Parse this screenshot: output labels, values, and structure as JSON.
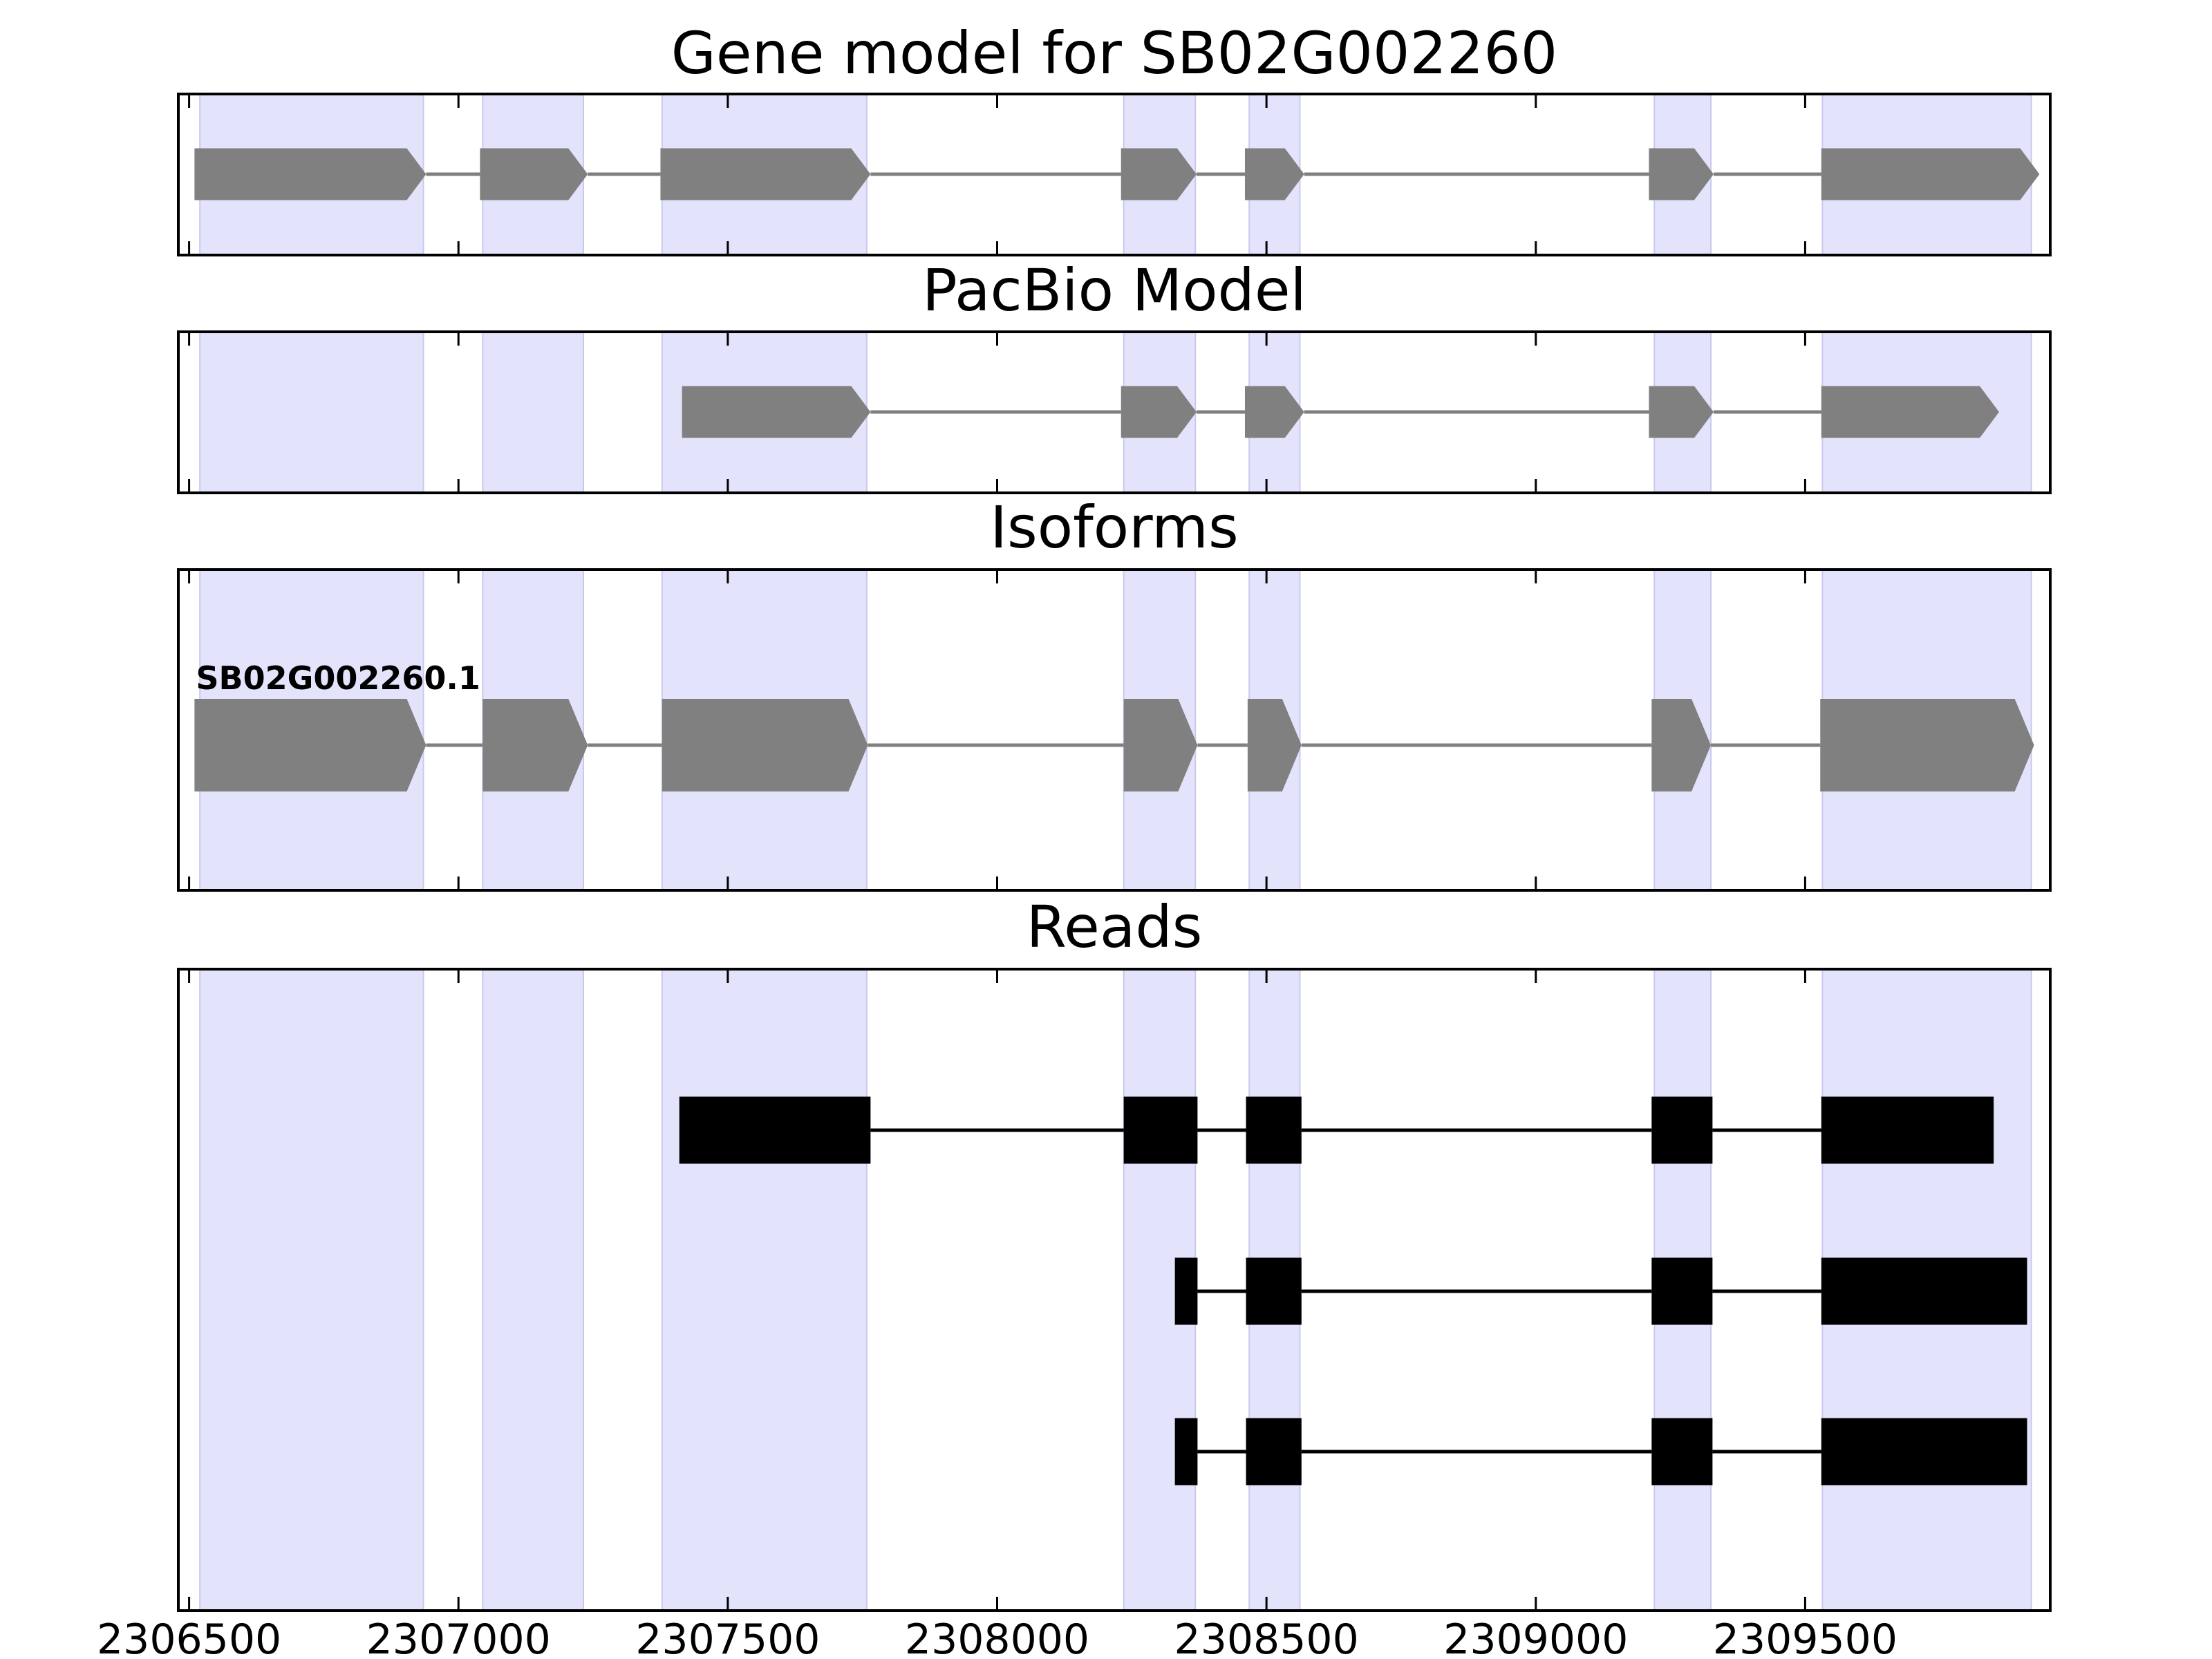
{
  "chart_data": {
    "type": "gene-structure",
    "xlim": [
      2306480,
      2309955
    ],
    "x_ticks": [
      2306500,
      2307000,
      2307500,
      2308000,
      2308500,
      2309000,
      2309500
    ],
    "x_tick_labels": [
      "2306500",
      "2307000",
      "2307500",
      "2308000",
      "2308500",
      "2309000",
      "2309500"
    ],
    "colors": {
      "exon_region": "#e3e3fc",
      "exon_region_edge": "#c9c9ee",
      "feature": "#808080",
      "read": "#000000",
      "frame": "#000000"
    },
    "exon_regions": [
      [
        2306520,
        2306935
      ],
      [
        2307045,
        2307232
      ],
      [
        2307378,
        2307758
      ],
      [
        2308235,
        2308368
      ],
      [
        2308468,
        2308562
      ],
      [
        2309220,
        2309325
      ],
      [
        2309532,
        2309920
      ]
    ],
    "panels": [
      {
        "title": "Gene model for SB02G002260",
        "kind": "model",
        "lanes": [
          {
            "label": "",
            "exons": [
              [
                2306510,
                2306940
              ],
              [
                2307040,
                2307240
              ],
              [
                2307375,
                2307765
              ],
              [
                2308230,
                2308370
              ],
              [
                2308460,
                2308570
              ],
              [
                2309210,
                2309330
              ],
              [
                2309530,
                2309935
              ]
            ]
          }
        ]
      },
      {
        "title": "PacBio Model",
        "kind": "model",
        "lanes": [
          {
            "label": "",
            "exons": [
              [
                2307415,
                2307765
              ],
              [
                2308230,
                2308370
              ],
              [
                2308460,
                2308570
              ],
              [
                2309210,
                2309330
              ],
              [
                2309530,
                2309860
              ]
            ]
          }
        ]
      },
      {
        "title": "Isoforms",
        "kind": "isoform",
        "lanes": [
          {
            "label": "SB02G002260.1",
            "exons": [
              [
                2306510,
                2306940
              ],
              [
                2307045,
                2307240
              ],
              [
                2307378,
                2307760
              ],
              [
                2308235,
                2308372
              ],
              [
                2308465,
                2308565
              ],
              [
                2309215,
                2309325
              ],
              [
                2309528,
                2309925
              ]
            ]
          }
        ]
      },
      {
        "title": "Reads",
        "kind": "reads",
        "lanes": [
          {
            "label": "",
            "exons": [
              [
                2307410,
                2307765
              ],
              [
                2308235,
                2308372
              ],
              [
                2308462,
                2308565
              ],
              [
                2309215,
                2309328
              ],
              [
                2309530,
                2309850
              ]
            ]
          },
          {
            "label": "",
            "exons": [
              [
                2308330,
                2308372
              ],
              [
                2308462,
                2308565
              ],
              [
                2309215,
                2309328
              ],
              [
                2309530,
                2309912
              ]
            ]
          },
          {
            "label": "",
            "exons": [
              [
                2308330,
                2308372
              ],
              [
                2308462,
                2308565
              ],
              [
                2309215,
                2309328
              ],
              [
                2309530,
                2309912
              ]
            ]
          }
        ]
      }
    ]
  }
}
